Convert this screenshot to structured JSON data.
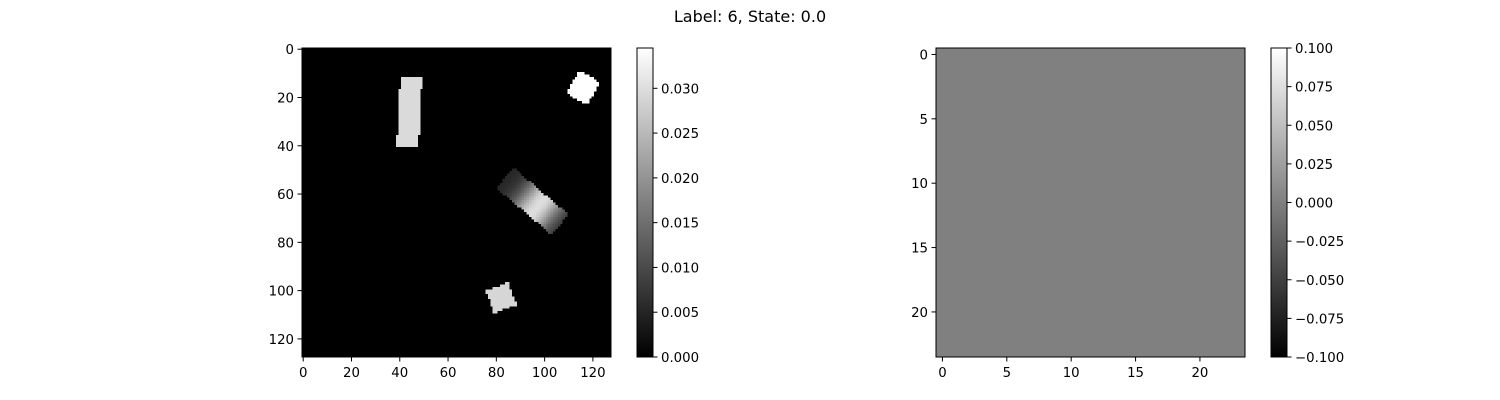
{
  "figure": {
    "suptitle": "Label: 6, State: 0.0"
  },
  "chart_data": [
    {
      "type": "heatmap",
      "title": "",
      "xlabel": "",
      "ylabel": "",
      "colormap": "gray",
      "image_size": [
        128,
        128
      ],
      "xlim": [
        -0.5,
        127.5
      ],
      "ylim": [
        127.5,
        -0.5
      ],
      "x_ticks": [
        0,
        20,
        40,
        60,
        80,
        100,
        120
      ],
      "y_ticks": [
        0,
        20,
        40,
        60,
        80,
        100,
        120
      ],
      "colorbar": {
        "vmin": 0.0,
        "vmax": 0.0345,
        "ticks": [
          0.0,
          0.005,
          0.01,
          0.015,
          0.02,
          0.025,
          0.03
        ],
        "tick_labels": [
          "0.000",
          "0.005",
          "0.010",
          "0.015",
          "0.020",
          "0.025",
          "0.030"
        ]
      },
      "background_value": 0.0,
      "shapes": [
        {
          "name": "tall-bar",
          "kind": "rotated-rect",
          "center": [
            44,
            26
          ],
          "width": 9,
          "height": 29,
          "angle_deg": 3,
          "value": 0.0295
        },
        {
          "name": "top-right-square",
          "kind": "rotated-rect",
          "center": [
            116,
            16
          ],
          "width": 10,
          "height": 11,
          "angle_deg": 30,
          "value": 0.0345
        },
        {
          "name": "gradient-bar",
          "kind": "rotated-rect",
          "center": [
            95,
            63
          ],
          "width": 30,
          "height": 11,
          "angle_deg": 40,
          "value_min": 0.005,
          "value_max": 0.03,
          "gradient": "peak-near-center"
        },
        {
          "name": "bottom-square",
          "kind": "rotated-rect",
          "center": [
            82,
            103
          ],
          "width": 10,
          "height": 10,
          "angle_deg": -20,
          "value": 0.029
        }
      ]
    },
    {
      "type": "heatmap",
      "title": "",
      "xlabel": "",
      "ylabel": "",
      "colormap": "gray",
      "image_size": [
        24,
        24
      ],
      "xlim": [
        -0.5,
        23.5
      ],
      "ylim": [
        23.5,
        -0.5
      ],
      "x_ticks": [
        0,
        5,
        10,
        15,
        20
      ],
      "y_ticks": [
        0,
        5,
        10,
        15,
        20
      ],
      "uniform_value": 0.0,
      "colorbar": {
        "vmin": -0.1,
        "vmax": 0.1,
        "ticks": [
          -0.1,
          -0.075,
          -0.05,
          -0.025,
          0.0,
          0.025,
          0.05,
          0.075,
          0.1
        ],
        "tick_labels": [
          "−0.100",
          "−0.075",
          "−0.050",
          "−0.025",
          "0.000",
          "0.025",
          "0.050",
          "0.075",
          "0.100"
        ]
      }
    }
  ]
}
